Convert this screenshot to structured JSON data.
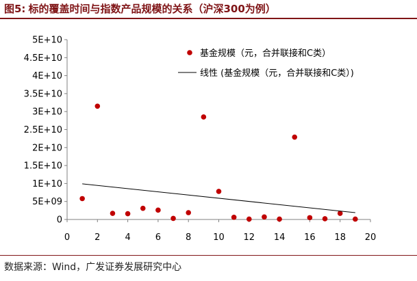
{
  "header": {
    "figure_label": "图5:",
    "title": "标的覆盖时间与指数产品规模的关系（沪深300为例）"
  },
  "footer": {
    "source": "数据来源：Wind，广发证券发展研究中心"
  },
  "colors": {
    "brand": "#7f1416",
    "marker": "#c00000",
    "trendline": "#000000"
  },
  "chart_data": {
    "type": "scatter",
    "title": "",
    "xlabel": "",
    "ylabel": "",
    "xlim": [
      0,
      20
    ],
    "ylim": [
      0,
      50000000000
    ],
    "x_ticks": [
      0,
      2,
      4,
      6,
      8,
      10,
      12,
      14,
      16,
      18,
      20
    ],
    "x_tick_labels": [
      "0",
      "2",
      "4",
      "6",
      "8",
      "10",
      "12",
      "14",
      "16",
      "18",
      "20"
    ],
    "y_ticks": [
      0,
      5000000000,
      10000000000,
      15000000000,
      20000000000,
      25000000000,
      30000000000,
      35000000000,
      40000000000,
      45000000000,
      50000000000
    ],
    "y_tick_labels": [
      "0",
      "5E+09",
      "1E+10",
      "1.5E+10",
      "2E+10",
      "2.5E+10",
      "3E+10",
      "3.5E+10",
      "4E+10",
      "4.5E+10",
      "5E+10"
    ],
    "grid": false,
    "legend_position": "top-right",
    "series": [
      {
        "name": "基金规模（元，合并联接和C类）",
        "kind": "points",
        "points": [
          {
            "x": 1,
            "y": 5800000000
          },
          {
            "x": 2,
            "y": 31500000000
          },
          {
            "x": 3,
            "y": 1700000000
          },
          {
            "x": 4,
            "y": 1600000000
          },
          {
            "x": 5,
            "y": 3100000000
          },
          {
            "x": 6,
            "y": 2600000000
          },
          {
            "x": 7,
            "y": 300000000
          },
          {
            "x": 8,
            "y": 1900000000
          },
          {
            "x": 9,
            "y": 28500000000
          },
          {
            "x": 10,
            "y": 7800000000
          },
          {
            "x": 11,
            "y": 600000000
          },
          {
            "x": 12,
            "y": 100000000
          },
          {
            "x": 13,
            "y": 700000000
          },
          {
            "x": 14,
            "y": 100000000
          },
          {
            "x": 15,
            "y": 22900000000
          },
          {
            "x": 16,
            "y": 500000000
          },
          {
            "x": 17,
            "y": 200000000
          },
          {
            "x": 18,
            "y": 1700000000
          },
          {
            "x": 19,
            "y": 100000000
          }
        ]
      },
      {
        "name": "线性 (基金规模（元，合并联接和C类）)",
        "kind": "trendline",
        "points": [
          {
            "x": 1,
            "y": 9900000000
          },
          {
            "x": 19,
            "y": 1900000000
          }
        ]
      }
    ]
  }
}
